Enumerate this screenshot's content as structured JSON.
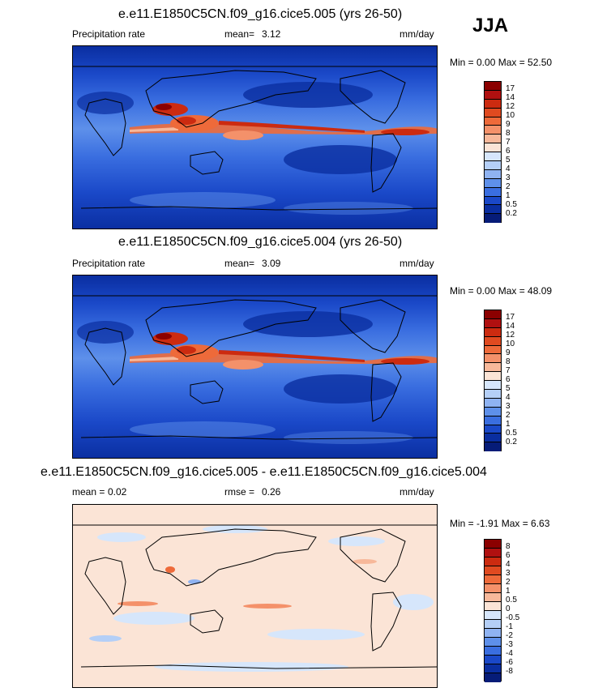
{
  "season": "JJA",
  "panels": [
    {
      "title": "e.e11.E1850C5CN.f09_g16.cice5.005 (yrs 26-50)",
      "left_label": "Precipitation rate",
      "center_label": "mean=",
      "center_value": "3.12",
      "units": "mm/day",
      "minmax": "Min =   0.00 Max =  52.50",
      "colorbar_ticks": [
        "17",
        "14",
        "12",
        "10",
        "9",
        "8",
        "7",
        "6",
        "5",
        "4",
        "3",
        "2",
        "1",
        "0.5",
        "0.2"
      ]
    },
    {
      "title": "e.e11.E1850C5CN.f09_g16.cice5.004 (yrs 26-50)",
      "left_label": "Precipitation rate",
      "center_label": "mean=",
      "center_value": "3.09",
      "units": "mm/day",
      "minmax": "Min =   0.00 Max =  48.09",
      "colorbar_ticks": [
        "17",
        "14",
        "12",
        "10",
        "9",
        "8",
        "7",
        "6",
        "5",
        "4",
        "3",
        "2",
        "1",
        "0.5",
        "0.2"
      ]
    },
    {
      "title": "e.e11.E1850C5CN.f09_g16.cice5.005 - e.e11.E1850C5CN.f09_g16.cice5.004",
      "left_label": "mean =",
      "left_value": "0.02",
      "center_label": "rmse =",
      "center_value": "0.26",
      "units": "mm/day",
      "minmax": "Min =  -1.91 Max =   6.63",
      "colorbar_ticks": [
        "8",
        "6",
        "4",
        "3",
        "2",
        "1",
        "0.5",
        "0",
        "-0.5",
        "-1",
        "-2",
        "-3",
        "-4",
        "-6",
        "-8"
      ]
    }
  ],
  "colors": {
    "precip_scale": [
      "#8b0000",
      "#b01010",
      "#cc2b10",
      "#e04a20",
      "#ee6a3a",
      "#f4916a",
      "#f7b89a",
      "#fbe4d6",
      "#d6e6fb",
      "#b4cff7",
      "#8fb3f2",
      "#5e90ea",
      "#3a6ee0",
      "#1a48c8",
      "#0a2ea0",
      "#061c78"
    ],
    "diff_scale": [
      "#8b0000",
      "#b01010",
      "#cc2b10",
      "#e04a20",
      "#ee6a3a",
      "#f4916a",
      "#f7b89a",
      "#fbe4d6",
      "#d6e6fb",
      "#b4cff7",
      "#8fb3f2",
      "#5e90ea",
      "#3a6ee0",
      "#1a48c8",
      "#0a2ea0",
      "#061c78"
    ]
  }
}
